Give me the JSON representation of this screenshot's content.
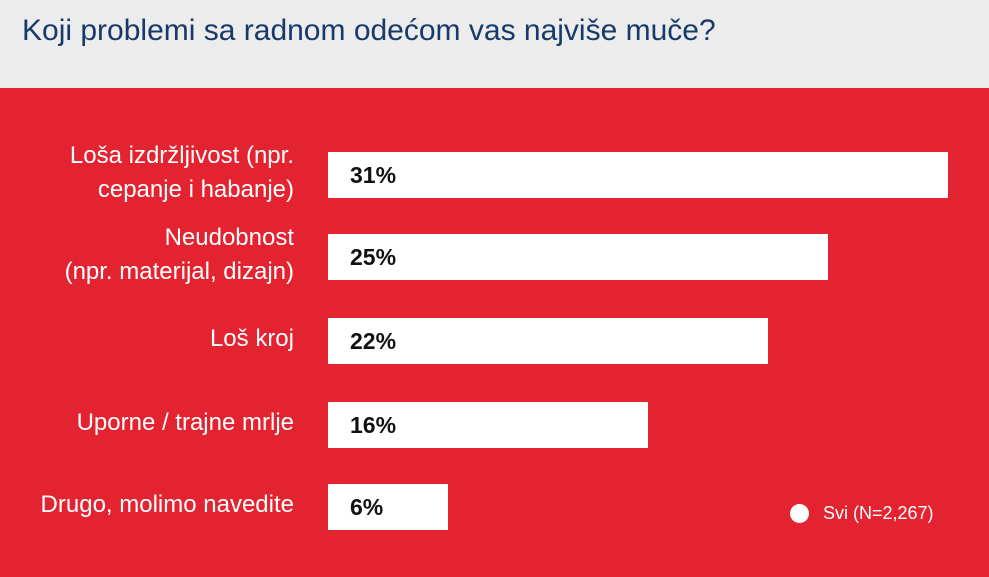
{
  "chart_data": {
    "type": "bar",
    "orientation": "horizontal",
    "title": "Koji problemi sa radnom odećom vas najviše muče?",
    "categories": [
      [
        "Loša izdržljivost (npr.",
        "cepanje i habanje)"
      ],
      [
        "Neudobnost",
        "(npr. materijal, dizajn)"
      ],
      [
        "Loš kroj"
      ],
      [
        "Uporne / trajne mrlje"
      ],
      [
        "Drugo, molimo navedite"
      ]
    ],
    "series": [
      {
        "name": "Svi (N=2,267)",
        "values": [
          31,
          25,
          22,
          16,
          6
        ],
        "labels": [
          "31%",
          "25%",
          "22%",
          "16%",
          "6%"
        ]
      }
    ],
    "xlim": [
      0,
      31
    ],
    "grid": false,
    "legend_position": "bottom-right",
    "colors": {
      "background": "#e42331",
      "bar": "#ffffff",
      "title": "#173a6b",
      "header": "#ececec"
    }
  }
}
